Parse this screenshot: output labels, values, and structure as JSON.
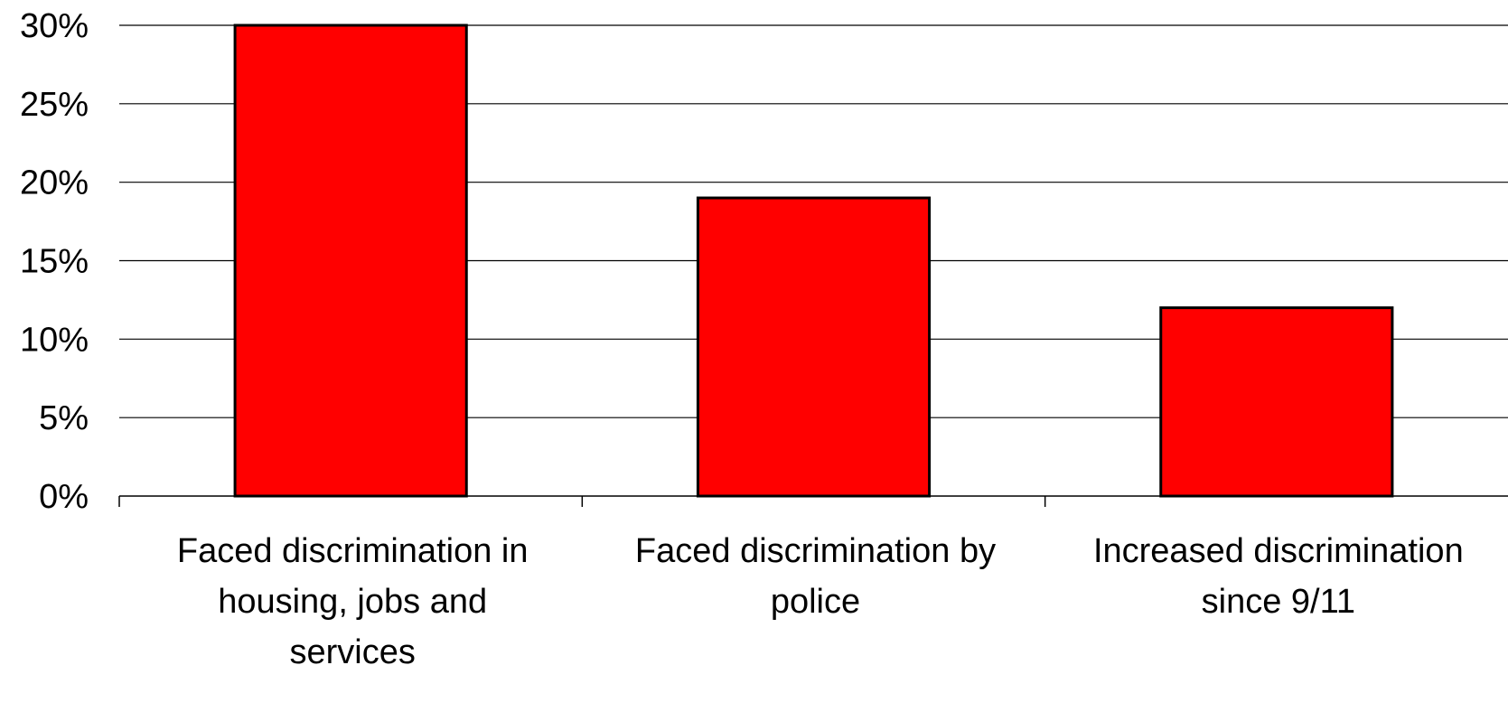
{
  "chart_data": {
    "type": "bar",
    "title": "",
    "xlabel": "",
    "ylabel": "",
    "categories": [
      [
        "Faced discrimination in",
        "housing, jobs and",
        "services"
      ],
      [
        "Faced discrimination by",
        "police"
      ],
      [
        "Increased discrimination",
        "since 9/11"
      ]
    ],
    "values": [
      30,
      19,
      12
    ],
    "ylim": [
      0,
      30
    ],
    "y_ticks": [
      0,
      5,
      10,
      15,
      20,
      25,
      30
    ],
    "y_tick_labels": [
      "0%",
      "5%",
      "10%",
      "15%",
      "20%",
      "25%",
      "30%"
    ],
    "grid": true,
    "legend": "none",
    "colors": {
      "bar_fill": "#ff0000",
      "bar_stroke": "#000000",
      "grid": "#000000",
      "axis": "#000000",
      "text": "#000000"
    }
  }
}
